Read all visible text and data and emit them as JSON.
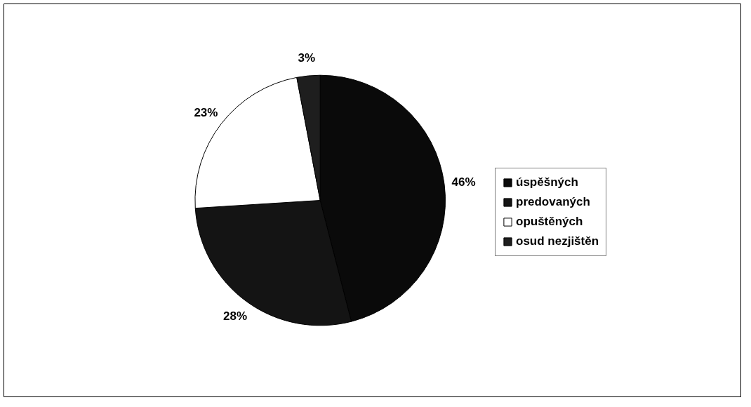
{
  "chart_data": {
    "type": "pie",
    "categories": [
      "úspěšných",
      "predovaných",
      "opuštěných",
      "osud nezjištěn"
    ],
    "values": [
      46,
      28,
      23,
      3
    ],
    "colors": [
      "#0a0a0a",
      "#141414",
      "#ffffff",
      "#1e1e1e"
    ],
    "value_labels": [
      "46%",
      "28%",
      "23%",
      "3%"
    ],
    "legend": "right"
  }
}
